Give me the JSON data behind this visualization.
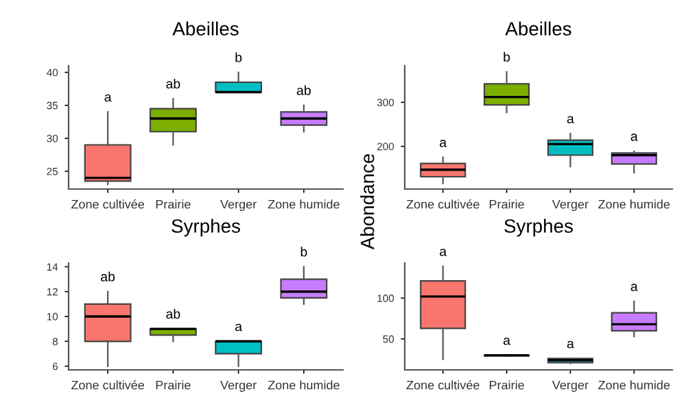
{
  "chart_data": [
    {
      "type": "box",
      "title": "Abeilles",
      "categories": [
        "Zone cultivée",
        "Prairie",
        "Verger",
        "Zone humide"
      ],
      "colors": [
        "#f8766d",
        "#7cae00",
        "#00bfc4",
        "#c77cff"
      ],
      "ylim": [
        22.3,
        41
      ],
      "yticks": [
        25,
        30,
        35,
        40
      ],
      "grid": false,
      "boxes": [
        {
          "low": 23,
          "q1": 23.5,
          "median": 24,
          "q3": 29,
          "high": 34
        },
        {
          "low": 29,
          "q1": 31,
          "median": 33,
          "q3": 34.5,
          "high": 36
        },
        {
          "low": 37,
          "q1": 37,
          "median": 37,
          "q3": 38.5,
          "high": 40
        },
        {
          "low": 31,
          "q1": 32,
          "median": 33,
          "q3": 34,
          "high": 35
        }
      ],
      "annotations": [
        "a",
        "ab",
        "b",
        "ab"
      ]
    },
    {
      "type": "box",
      "title": "Abeilles",
      "ylabel": "Abondance",
      "categories": [
        "Zone cultivée",
        "Prairie",
        "Verger",
        "Zone humide"
      ],
      "colors": [
        "#f8766d",
        "#7cae00",
        "#00bfc4",
        "#c77cff"
      ],
      "ylim": [
        103,
        383
      ],
      "yticks": [
        200,
        300
      ],
      "grid": false,
      "boxes": [
        {
          "low": 116,
          "q1": 131,
          "median": 147,
          "q3": 161,
          "high": 175
        },
        {
          "low": 277,
          "q1": 294,
          "median": 312,
          "q3": 342,
          "high": 369
        },
        {
          "low": 154,
          "q1": 180,
          "median": 205,
          "q3": 214,
          "high": 229
        },
        {
          "low": 140,
          "q1": 160,
          "median": 180,
          "q3": 185,
          "high": 189
        }
      ],
      "annotations": [
        "a",
        "b",
        "a",
        "a"
      ]
    },
    {
      "type": "box",
      "title": "Syrphes",
      "categories": [
        "Zone cultivée",
        "Prairie",
        "Verger",
        "Zone humide"
      ],
      "colors": [
        "#f8766d",
        "#7cae00",
        "#00bfc4",
        "#c77cff"
      ],
      "ylim": [
        5.7,
        14.3
      ],
      "yticks": [
        6,
        8,
        10,
        12,
        14
      ],
      "grid": false,
      "boxes": [
        {
          "low": 6,
          "q1": 8,
          "median": 10,
          "q3": 11,
          "high": 12
        },
        {
          "low": 8,
          "q1": 8.5,
          "median": 9,
          "q3": 9,
          "high": 9
        },
        {
          "low": 6,
          "q1": 7,
          "median": 8,
          "q3": 8,
          "high": 8
        },
        {
          "low": 11,
          "q1": 11.5,
          "median": 12,
          "q3": 13,
          "high": 14
        }
      ],
      "annotations": [
        "ab",
        "ab",
        "a",
        "b"
      ]
    },
    {
      "type": "box",
      "title": "Syrphes",
      "categories": [
        "Zone cultivée",
        "Prairie",
        "Verger",
        "Zone humide"
      ],
      "colors": [
        "#f8766d",
        "#7cae00",
        "#00bfc4",
        "#c77cff"
      ],
      "ylim": [
        12,
        143
      ],
      "yticks": [
        50,
        100
      ],
      "grid": false,
      "boxes": [
        {
          "low": 25,
          "q1": 63,
          "median": 102,
          "q3": 121,
          "high": 139
        },
        {
          "low": 29,
          "q1": 29,
          "median": 30,
          "q3": 30,
          "high": 30
        },
        {
          "low": 20,
          "q1": 21,
          "median": 24,
          "q3": 26,
          "high": 26
        },
        {
          "low": 53,
          "q1": 60,
          "median": 68,
          "q3": 82,
          "high": 96
        }
      ],
      "annotations": [
        "a",
        "a",
        "a",
        "a"
      ]
    }
  ]
}
